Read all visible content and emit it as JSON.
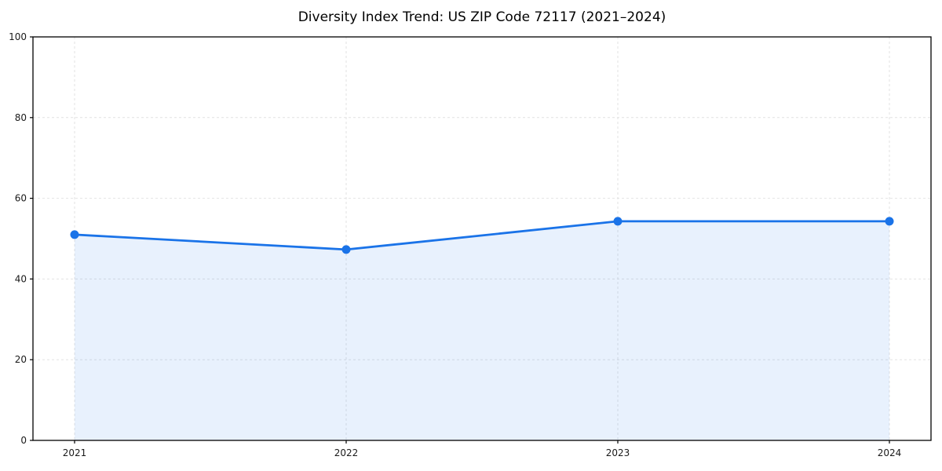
{
  "chart_data": {
    "type": "area",
    "title": "Diversity Index Trend: US ZIP Code 72117 (2021–2024)",
    "categories": [
      "2021",
      "2022",
      "2023",
      "2024"
    ],
    "series": [
      {
        "name": "Diversity Index",
        "values": [
          51.0,
          47.3,
          54.3,
          54.3
        ]
      }
    ],
    "xlabel": "",
    "ylabel": "",
    "ylim": [
      0,
      100
    ],
    "yticks": [
      0,
      20,
      40,
      60,
      80,
      100
    ],
    "grid": "dashed-both-axes",
    "legend": "none",
    "marker": "circle",
    "colors": {
      "line": "#1a73e8",
      "marker": "#1a73e8",
      "fill": "rgba(26,115,232,0.10)",
      "grid": "#e2e2e2",
      "axis": "#000000",
      "tick_label": "#1a1a1a",
      "background": "#ffffff"
    }
  }
}
